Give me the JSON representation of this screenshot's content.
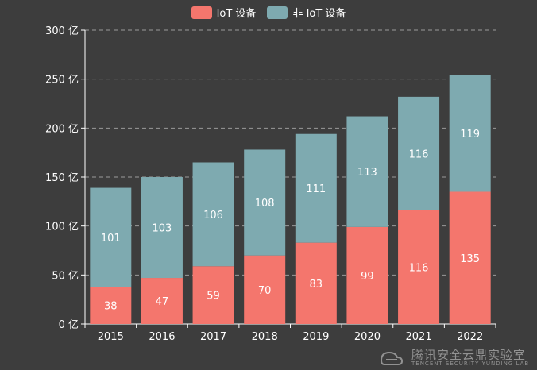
{
  "chart_data": {
    "type": "bar",
    "stacked": true,
    "categories": [
      "2015",
      "2016",
      "2017",
      "2018",
      "2019",
      "2020",
      "2021",
      "2022"
    ],
    "series": [
      {
        "name": "IoT 设备",
        "color": "#f4766d",
        "values": [
          38,
          47,
          59,
          70,
          83,
          99,
          116,
          135
        ]
      },
      {
        "name": "非 IoT 设备",
        "color": "#7eaab0",
        "values": [
          101,
          103,
          106,
          108,
          111,
          113,
          116,
          119
        ]
      }
    ],
    "y_ticks": [
      "0 亿",
      "50 亿",
      "100 亿",
      "150 亿",
      "200 亿",
      "250 亿",
      "300 亿"
    ],
    "ylim": [
      0,
      300
    ],
    "grid": "dashed horizontal",
    "legend_position": "top-center"
  },
  "watermark": {
    "text_cn": "腾讯安全云鼎实验室",
    "text_en": "TENCENT SECURITY YUNDING LAB"
  },
  "colors": {
    "background": "#3d3d3d",
    "text": "#ffffff",
    "grid": "#9a9a9a"
  }
}
